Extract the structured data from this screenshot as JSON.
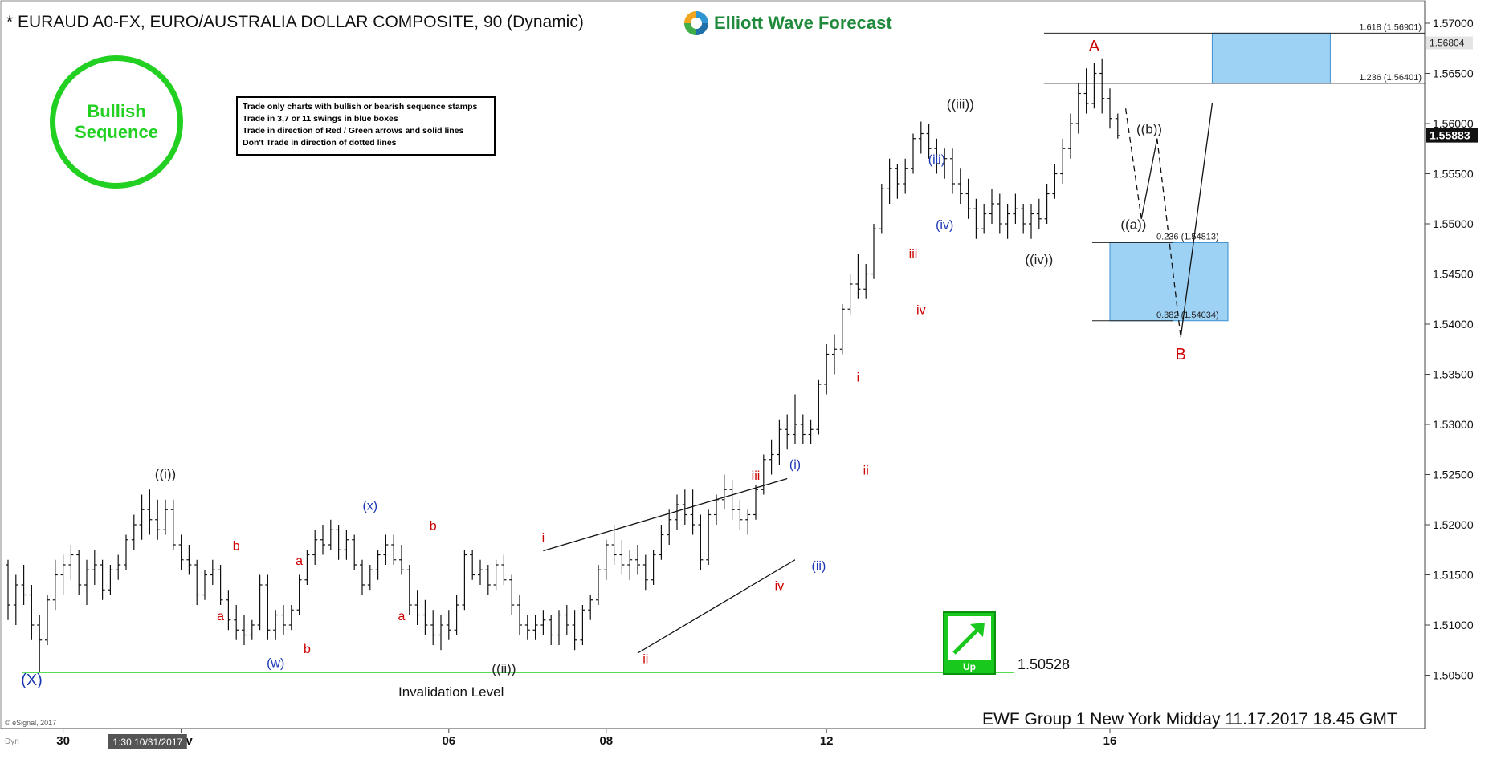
{
  "header": {
    "title": "* EURAUD A0-FX, EURO/AUSTRALIA DOLLAR COMPOSITE, 90 (Dynamic)",
    "brand_name": "Elliott Wave Forecast"
  },
  "stamp": {
    "line1": "Bullish",
    "line2": "Sequence",
    "color": "#21d021"
  },
  "rules": [
    "Trade only charts with bullish or bearish sequence stamps",
    "Trade in 3,7 or 11 swings in blue boxes",
    "Trade in direction of Red / Green arrows and solid lines",
    "Don't Trade in direction of dotted lines"
  ],
  "badge": {
    "label": "Up",
    "color": "#19c81d"
  },
  "footer": {
    "text": "EWF Group 1 New York Midday  11.17.2017 18.45 GMT",
    "copyright": "© eSignal, 2017",
    "dyn_label": "Dyn"
  },
  "chart_data": {
    "type": "ohlc",
    "symbol": "EURAUD",
    "interval_minutes": 90,
    "ylim": [
      1.5002,
      1.5715
    ],
    "y_ticks": [
      "1.50500",
      "1.51000",
      "1.51500",
      "1.52000",
      "1.52500",
      "1.53000",
      "1.53500",
      "1.54000",
      "1.54500",
      "1.55000",
      "1.55500",
      "1.56000",
      "1.56500",
      "1.57000"
    ],
    "y_tick_values": [
      1.505,
      1.51,
      1.515,
      1.52,
      1.525,
      1.53,
      1.535,
      1.54,
      1.545,
      1.55,
      1.555,
      1.56,
      1.565,
      1.57
    ],
    "x_ticks": [
      {
        "label": "30",
        "bar": 7
      },
      {
        "label": "Nov",
        "bar": 22
      },
      {
        "label": "06",
        "bar": 56
      },
      {
        "label": "08",
        "bar": 76
      },
      {
        "label": "12",
        "bar": 104
      },
      {
        "label": "16",
        "bar": 140
      }
    ],
    "x_cursor_label": "1:30 10/31/2017",
    "x_cursor_bar": 16,
    "last_price": "1.55883",
    "last_price_value": 1.55883,
    "secondary_price": "1.56804",
    "secondary_price_value": 1.56804,
    "invalidation": {
      "label": "Invalidation Level",
      "value": 1.50528,
      "value_text": "1.50528",
      "color": "#21d021"
    },
    "fib_levels": [
      {
        "label": "1.618 (1.56901)",
        "value": 1.56901
      },
      {
        "label": "1.236 (1.56401)",
        "value": 1.56401
      },
      {
        "label": "0.236 (1.54813)",
        "value": 1.54813
      },
      {
        "label": "0.382 (1.54034)",
        "value": 1.54034
      }
    ],
    "blue_boxes": [
      {
        "bar_start": 153,
        "bar_end": 168,
        "top": 1.56901,
        "bottom": 1.56401
      },
      {
        "bar_start": 140,
        "bar_end": 155,
        "top": 1.54813,
        "bottom": 1.54034
      }
    ],
    "ohlc": [
      [
        1.516,
        1.5165,
        1.5105,
        1.512
      ],
      [
        1.512,
        1.515,
        1.51,
        1.514
      ],
      [
        1.514,
        1.516,
        1.512,
        1.513
      ],
      [
        1.513,
        1.514,
        1.5085,
        1.51
      ],
      [
        1.51,
        1.511,
        1.5053,
        1.5085
      ],
      [
        1.5085,
        1.513,
        1.508,
        1.5125
      ],
      [
        1.5125,
        1.5165,
        1.5115,
        1.515
      ],
      [
        1.515,
        1.517,
        1.513,
        1.516
      ],
      [
        1.516,
        1.518,
        1.5145,
        1.517
      ],
      [
        1.517,
        1.5175,
        1.513,
        1.514
      ],
      [
        1.514,
        1.5165,
        1.512,
        1.5155
      ],
      [
        1.5155,
        1.5175,
        1.514,
        1.516
      ],
      [
        1.516,
        1.5165,
        1.5125,
        1.5135
      ],
      [
        1.5135,
        1.516,
        1.513,
        1.5155
      ],
      [
        1.5155,
        1.517,
        1.5145,
        1.516
      ],
      [
        1.516,
        1.519,
        1.5155,
        1.5185
      ],
      [
        1.5185,
        1.521,
        1.5175,
        1.52
      ],
      [
        1.52,
        1.523,
        1.5185,
        1.5215
      ],
      [
        1.5215,
        1.5235,
        1.519,
        1.5205
      ],
      [
        1.5205,
        1.5225,
        1.5185,
        1.5195
      ],
      [
        1.5195,
        1.5225,
        1.519,
        1.5215
      ],
      [
        1.5215,
        1.5225,
        1.5175,
        1.518
      ],
      [
        1.518,
        1.519,
        1.5155,
        1.5165
      ],
      [
        1.5165,
        1.518,
        1.515,
        1.516
      ],
      [
        1.516,
        1.5165,
        1.512,
        1.513
      ],
      [
        1.513,
        1.5155,
        1.5125,
        1.515
      ],
      [
        1.515,
        1.5165,
        1.514,
        1.5155
      ],
      [
        1.5155,
        1.516,
        1.512,
        1.5125
      ],
      [
        1.5125,
        1.5135,
        1.5095,
        1.5105
      ],
      [
        1.5105,
        1.512,
        1.5085,
        1.5095
      ],
      [
        1.5095,
        1.511,
        1.508,
        1.509
      ],
      [
        1.509,
        1.5105,
        1.5085,
        1.51
      ],
      [
        1.51,
        1.515,
        1.5095,
        1.514
      ],
      [
        1.514,
        1.515,
        1.5085,
        1.5095
      ],
      [
        1.5095,
        1.5115,
        1.5085,
        1.511
      ],
      [
        1.511,
        1.512,
        1.509,
        1.51
      ],
      [
        1.51,
        1.512,
        1.5095,
        1.5115
      ],
      [
        1.5115,
        1.515,
        1.511,
        1.5145
      ],
      [
        1.5145,
        1.5175,
        1.514,
        1.517
      ],
      [
        1.517,
        1.5195,
        1.516,
        1.5185
      ],
      [
        1.5185,
        1.52,
        1.517,
        1.518
      ],
      [
        1.518,
        1.5205,
        1.5175,
        1.5195
      ],
      [
        1.5195,
        1.52,
        1.5165,
        1.5175
      ],
      [
        1.5175,
        1.5195,
        1.5165,
        1.5185
      ],
      [
        1.5185,
        1.519,
        1.5155,
        1.516
      ],
      [
        1.516,
        1.5165,
        1.513,
        1.514
      ],
      [
        1.514,
        1.516,
        1.5135,
        1.5155
      ],
      [
        1.5155,
        1.5175,
        1.5145,
        1.517
      ],
      [
        1.517,
        1.519,
        1.516,
        1.518
      ],
      [
        1.518,
        1.519,
        1.516,
        1.5165
      ],
      [
        1.5165,
        1.518,
        1.515,
        1.5155
      ],
      [
        1.5155,
        1.516,
        1.511,
        1.512
      ],
      [
        1.512,
        1.5135,
        1.51,
        1.511
      ],
      [
        1.511,
        1.5125,
        1.509,
        1.51
      ],
      [
        1.51,
        1.5115,
        1.508,
        1.509
      ],
      [
        1.509,
        1.511,
        1.5075,
        1.51
      ],
      [
        1.51,
        1.5115,
        1.5085,
        1.5095
      ],
      [
        1.5095,
        1.513,
        1.509,
        1.512
      ],
      [
        1.512,
        1.5175,
        1.5115,
        1.517
      ],
      [
        1.517,
        1.5175,
        1.5145,
        1.515
      ],
      [
        1.515,
        1.5165,
        1.514,
        1.5155
      ],
      [
        1.5155,
        1.516,
        1.513,
        1.514
      ],
      [
        1.514,
        1.5165,
        1.5135,
        1.516
      ],
      [
        1.516,
        1.517,
        1.514,
        1.5145
      ],
      [
        1.5145,
        1.515,
        1.511,
        1.512
      ],
      [
        1.512,
        1.513,
        1.509,
        1.51
      ],
      [
        1.51,
        1.511,
        1.5085,
        1.5095
      ],
      [
        1.5095,
        1.511,
        1.5085,
        1.51
      ],
      [
        1.51,
        1.5115,
        1.509,
        1.5105
      ],
      [
        1.5105,
        1.511,
        1.508,
        1.509
      ],
      [
        1.509,
        1.5115,
        1.508,
        1.511
      ],
      [
        1.511,
        1.512,
        1.509,
        1.51
      ],
      [
        1.51,
        1.5115,
        1.5075,
        1.5085
      ],
      [
        1.5085,
        1.512,
        1.508,
        1.5115
      ],
      [
        1.5115,
        1.513,
        1.5105,
        1.5125
      ],
      [
        1.5125,
        1.516,
        1.512,
        1.5155
      ],
      [
        1.5155,
        1.5185,
        1.5145,
        1.518
      ],
      [
        1.518,
        1.52,
        1.516,
        1.517
      ],
      [
        1.517,
        1.5185,
        1.515,
        1.516
      ],
      [
        1.516,
        1.5175,
        1.5145,
        1.5165
      ],
      [
        1.5165,
        1.518,
        1.515,
        1.516
      ],
      [
        1.516,
        1.517,
        1.5135,
        1.5145
      ],
      [
        1.5145,
        1.5175,
        1.514,
        1.517
      ],
      [
        1.517,
        1.52,
        1.5165,
        1.519
      ],
      [
        1.519,
        1.5215,
        1.518,
        1.5205
      ],
      [
        1.5205,
        1.523,
        1.5195,
        1.522
      ],
      [
        1.522,
        1.5235,
        1.52,
        1.521
      ],
      [
        1.521,
        1.5235,
        1.519,
        1.52
      ],
      [
        1.52,
        1.521,
        1.5155,
        1.5165
      ],
      [
        1.5165,
        1.5215,
        1.516,
        1.521
      ],
      [
        1.521,
        1.523,
        1.52,
        1.5225
      ],
      [
        1.5225,
        1.525,
        1.5215,
        1.5235
      ],
      [
        1.5235,
        1.5245,
        1.5205,
        1.5215
      ],
      [
        1.5215,
        1.5225,
        1.5195,
        1.5205
      ],
      [
        1.5205,
        1.5215,
        1.519,
        1.521
      ],
      [
        1.521,
        1.524,
        1.5205,
        1.5235
      ],
      [
        1.5235,
        1.527,
        1.523,
        1.5265
      ],
      [
        1.5265,
        1.5285,
        1.525,
        1.527
      ],
      [
        1.527,
        1.5305,
        1.526,
        1.5295
      ],
      [
        1.5295,
        1.531,
        1.5275,
        1.529
      ],
      [
        1.529,
        1.533,
        1.528,
        1.53
      ],
      [
        1.53,
        1.531,
        1.528,
        1.529
      ],
      [
        1.529,
        1.5305,
        1.528,
        1.5295
      ],
      [
        1.5295,
        1.5345,
        1.529,
        1.534
      ],
      [
        1.534,
        1.538,
        1.533,
        1.537
      ],
      [
        1.537,
        1.539,
        1.535,
        1.5375
      ],
      [
        1.5375,
        1.542,
        1.537,
        1.5415
      ],
      [
        1.5415,
        1.545,
        1.541,
        1.544
      ],
      [
        1.544,
        1.547,
        1.5425,
        1.5435
      ],
      [
        1.5435,
        1.546,
        1.5425,
        1.545
      ],
      [
        1.545,
        1.55,
        1.5445,
        1.5495
      ],
      [
        1.5495,
        1.554,
        1.549,
        1.5535
      ],
      [
        1.5535,
        1.5565,
        1.552,
        1.5555
      ],
      [
        1.5555,
        1.556,
        1.5525,
        1.554
      ],
      [
        1.554,
        1.5565,
        1.553,
        1.5555
      ],
      [
        1.5555,
        1.559,
        1.555,
        1.5585
      ],
      [
        1.5585,
        1.5602,
        1.557,
        1.559
      ],
      [
        1.559,
        1.56,
        1.5565,
        1.5575
      ],
      [
        1.5575,
        1.5585,
        1.555,
        1.556
      ],
      [
        1.556,
        1.5575,
        1.5545,
        1.5565
      ],
      [
        1.5565,
        1.5575,
        1.553,
        1.554
      ],
      [
        1.554,
        1.5555,
        1.552,
        1.553
      ],
      [
        1.553,
        1.5545,
        1.5505,
        1.5515
      ],
      [
        1.5515,
        1.5525,
        1.5485,
        1.5495
      ],
      [
        1.5495,
        1.552,
        1.549,
        1.551
      ],
      [
        1.551,
        1.5535,
        1.55,
        1.552
      ],
      [
        1.552,
        1.553,
        1.549,
        1.55
      ],
      [
        1.55,
        1.552,
        1.5485,
        1.551
      ],
      [
        1.551,
        1.553,
        1.55,
        1.5515
      ],
      [
        1.5515,
        1.552,
        1.549,
        1.55
      ],
      [
        1.55,
        1.552,
        1.5485,
        1.551
      ],
      [
        1.551,
        1.5525,
        1.5495,
        1.5505
      ],
      [
        1.5505,
        1.554,
        1.55,
        1.553
      ],
      [
        1.553,
        1.556,
        1.5525,
        1.555
      ],
      [
        1.555,
        1.5585,
        1.554,
        1.5575
      ],
      [
        1.5575,
        1.561,
        1.5565,
        1.56
      ],
      [
        1.56,
        1.564,
        1.559,
        1.563
      ],
      [
        1.563,
        1.5655,
        1.561,
        1.562
      ],
      [
        1.562,
        1.566,
        1.5615,
        1.565
      ],
      [
        1.565,
        1.5665,
        1.561,
        1.5625
      ],
      [
        1.5625,
        1.5635,
        1.5595,
        1.5605
      ],
      [
        1.5605,
        1.561,
        1.5585,
        1.5588
      ]
    ],
    "annotations": [
      {
        "text": "(X)",
        "bar": 3,
        "value": 1.504,
        "color": "#1a36b5",
        "size": 20
      },
      {
        "text": "((i))",
        "bar": 20,
        "value": 1.5246,
        "color": "#222",
        "size": 17
      },
      {
        "text": "a",
        "bar": 27,
        "value": 1.5105,
        "color": "#cc0000",
        "size": 16
      },
      {
        "text": "b",
        "bar": 29,
        "value": 1.5175,
        "color": "#cc0000",
        "size": 16
      },
      {
        "text": "(w)",
        "bar": 34,
        "value": 1.5058,
        "color": "#1a36b5",
        "size": 16
      },
      {
        "text": "a",
        "bar": 37,
        "value": 1.516,
        "color": "#cc0000",
        "size": 16
      },
      {
        "text": "b",
        "bar": 38,
        "value": 1.5072,
        "color": "#cc0000",
        "size": 16
      },
      {
        "text": "(x)",
        "bar": 46,
        "value": 1.5215,
        "color": "#1a36b5",
        "size": 16
      },
      {
        "text": "a",
        "bar": 50,
        "value": 1.5105,
        "color": "#cc0000",
        "size": 16
      },
      {
        "text": "b",
        "bar": 54,
        "value": 1.5195,
        "color": "#cc0000",
        "size": 16
      },
      {
        "text": "((ii))",
        "bar": 63,
        "value": 1.5052,
        "color": "#222",
        "size": 17
      },
      {
        "text": "i",
        "bar": 68,
        "value": 1.5183,
        "color": "#cc0000",
        "size": 16
      },
      {
        "text": "ii",
        "bar": 81,
        "value": 1.5062,
        "color": "#cc0000",
        "size": 16
      },
      {
        "text": "iii",
        "bar": 95,
        "value": 1.5245,
        "color": "#cc0000",
        "size": 16
      },
      {
        "text": "iv",
        "bar": 98,
        "value": 1.5135,
        "color": "#cc0000",
        "size": 16
      },
      {
        "text": "(i)",
        "bar": 100,
        "value": 1.5256,
        "color": "#1a36b5",
        "size": 16
      },
      {
        "text": "(ii)",
        "bar": 103,
        "value": 1.5155,
        "color": "#1a36b5",
        "size": 16
      },
      {
        "text": "i",
        "bar": 108,
        "value": 1.5343,
        "color": "#cc0000",
        "size": 16
      },
      {
        "text": "ii",
        "bar": 109,
        "value": 1.525,
        "color": "#cc0000",
        "size": 16
      },
      {
        "text": "iii",
        "bar": 115,
        "value": 1.5466,
        "color": "#cc0000",
        "size": 16
      },
      {
        "text": "iv",
        "bar": 116,
        "value": 1.541,
        "color": "#cc0000",
        "size": 16
      },
      {
        "text": "(iii)",
        "bar": 118,
        "value": 1.556,
        "color": "#1a36b5",
        "size": 16
      },
      {
        "text": "(iv)",
        "bar": 119,
        "value": 1.5495,
        "color": "#1a36b5",
        "size": 16
      },
      {
        "text": "((iii))",
        "bar": 121,
        "value": 1.5615,
        "color": "#222",
        "size": 17
      },
      {
        "text": "((iv))",
        "bar": 131,
        "value": 1.546,
        "color": "#222",
        "size": 17
      },
      {
        "text": "A",
        "bar": 138,
        "value": 1.5672,
        "color": "#cc0000",
        "size": 20
      },
      {
        "text": "((a))",
        "bar": 143,
        "value": 1.5495,
        "color": "#222",
        "size": 17
      },
      {
        "text": "((b))",
        "bar": 145,
        "value": 1.559,
        "color": "#222",
        "size": 17
      },
      {
        "text": "B",
        "bar": 149,
        "value": 1.5365,
        "color": "#cc0000",
        "size": 20
      }
    ],
    "trendlines": [
      {
        "b1": 68,
        "v1": 1.5174,
        "b2": 99,
        "v2": 1.5246,
        "style": "solid"
      },
      {
        "b1": 80,
        "v1": 1.5072,
        "b2": 100,
        "v2": 1.5165,
        "style": "solid"
      }
    ],
    "projection": [
      {
        "b1": 142,
        "v1": 1.5615,
        "b2": 144,
        "v2": 1.5505,
        "style": "dashed"
      },
      {
        "b1": 144,
        "v1": 1.5505,
        "b2": 146,
        "v2": 1.5585,
        "style": "solid"
      },
      {
        "b1": 146,
        "v1": 1.5585,
        "b2": 149,
        "v2": 1.5387,
        "style": "dashed"
      },
      {
        "b1": 149,
        "v1": 1.5387,
        "b2": 153,
        "v2": 1.562,
        "style": "solid"
      }
    ]
  }
}
